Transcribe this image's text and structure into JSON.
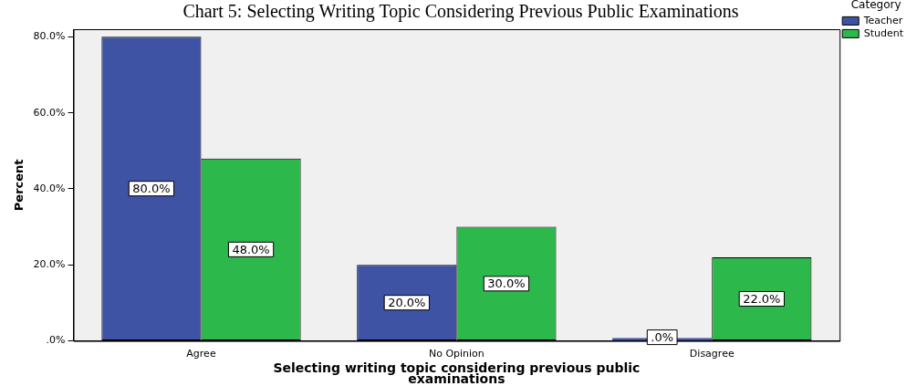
{
  "chart_data": {
    "type": "bar",
    "title": "Chart 5: Selecting Writing Topic Considering Previous Public Examinations",
    "xlabel": "Selecting writing topic considering previous public examinations",
    "ylabel": "Percent",
    "legend_title": "Category",
    "categories": [
      "Agree",
      "No Opinion",
      "Disagree"
    ],
    "series": [
      {
        "name": "Teacher",
        "color": "#3e53a3",
        "values": [
          80,
          20,
          0
        ],
        "value_labels": [
          "80.0%",
          "20.0%",
          ".0%"
        ]
      },
      {
        "name": "Student",
        "color": "#2db84b",
        "values": [
          48,
          30,
          22
        ],
        "value_labels": [
          "48.0%",
          "30.0%",
          "22.0%"
        ]
      }
    ],
    "ylim": [
      0,
      82
    ],
    "yticks": [
      {
        "value": 0,
        "label": ".0%"
      },
      {
        "value": 20,
        "label": "20.0%"
      },
      {
        "value": 40,
        "label": "40.0%"
      },
      {
        "value": 60,
        "label": "60.0%"
      },
      {
        "value": 80,
        "label": "80.0%"
      }
    ],
    "grid": false,
    "legend": "top right"
  }
}
